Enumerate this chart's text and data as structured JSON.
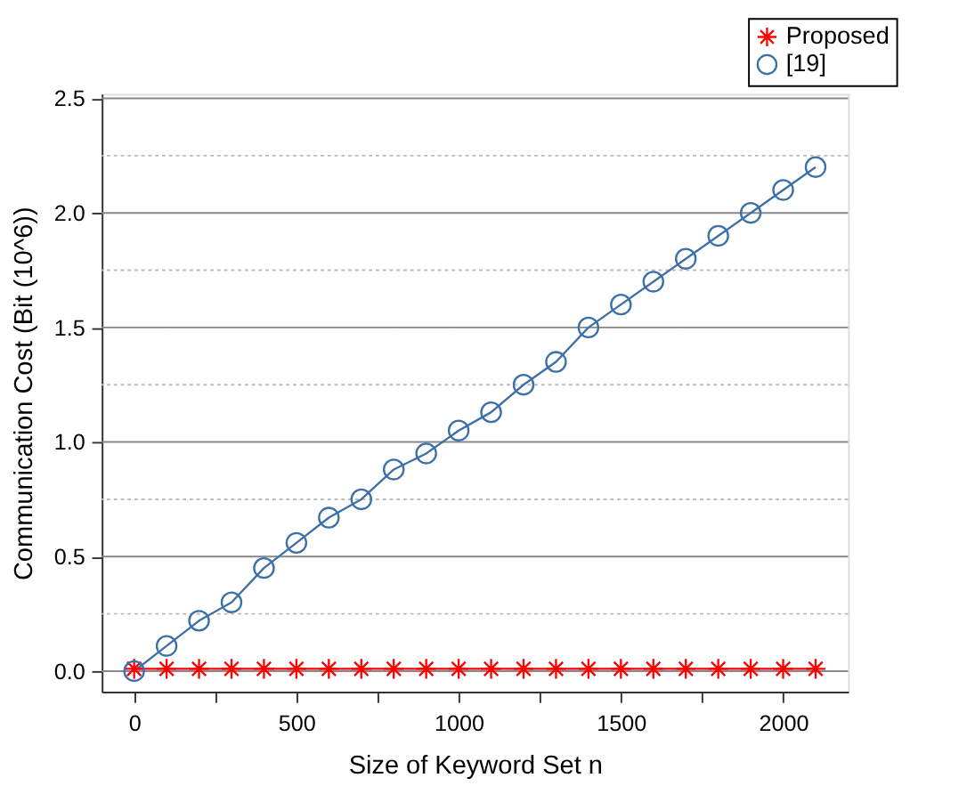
{
  "chart_data": {
    "type": "line",
    "xlabel": "Size of Keyword Set n",
    "ylabel": "Communication Cost (Bit (10^6))",
    "x": [
      0,
      100,
      200,
      300,
      400,
      500,
      600,
      700,
      800,
      900,
      1000,
      1100,
      1200,
      1300,
      1400,
      1500,
      1600,
      1700,
      1800,
      1900,
      2000,
      2100
    ],
    "series": [
      {
        "name": "Proposed",
        "color": "#ff0000",
        "marker": "cross",
        "values": [
          0.01,
          0.01,
          0.01,
          0.01,
          0.01,
          0.01,
          0.01,
          0.01,
          0.01,
          0.01,
          0.01,
          0.01,
          0.01,
          0.01,
          0.01,
          0.01,
          0.01,
          0.01,
          0.01,
          0.01,
          0.01,
          0.01
        ]
      },
      {
        "name": "[19]",
        "color": "#3d6fa8",
        "marker": "circle",
        "values": [
          0,
          0.11,
          0.22,
          0.3,
          0.45,
          0.56,
          0.67,
          0.75,
          0.88,
          0.95,
          1.05,
          1.13,
          1.25,
          1.35,
          1.5,
          1.6,
          1.7,
          1.8,
          1.9,
          2.0,
          2.1,
          2.2
        ]
      }
    ],
    "xlim": [
      -100,
      2200
    ],
    "ylim": [
      -0.09,
      2.52
    ],
    "xticks": [
      0,
      {
        "value": 250,
        "label": null
      },
      500,
      {
        "value": 750,
        "label": null
      },
      1000,
      {
        "value": 1250,
        "label": null
      },
      1500,
      {
        "value": 1750,
        "label": null
      },
      2000
    ],
    "yticks": [
      {
        "value": 0,
        "label": "0.0"
      },
      {
        "value": 0.25,
        "label": null
      },
      {
        "value": 0.5,
        "label": "0.5"
      },
      {
        "value": 0.75,
        "label": null
      },
      {
        "value": 1,
        "label": "1.0"
      },
      {
        "value": 1.25,
        "label": null
      },
      {
        "value": 1.5,
        "label": "1.5"
      },
      {
        "value": 1.75,
        "label": null
      },
      {
        "value": 2,
        "label": "2.0"
      },
      {
        "value": 2.25,
        "label": null
      },
      {
        "value": 2.5,
        "label": "2.5"
      }
    ],
    "grid": "y",
    "legend": "top right",
    "line_style": "solid"
  }
}
